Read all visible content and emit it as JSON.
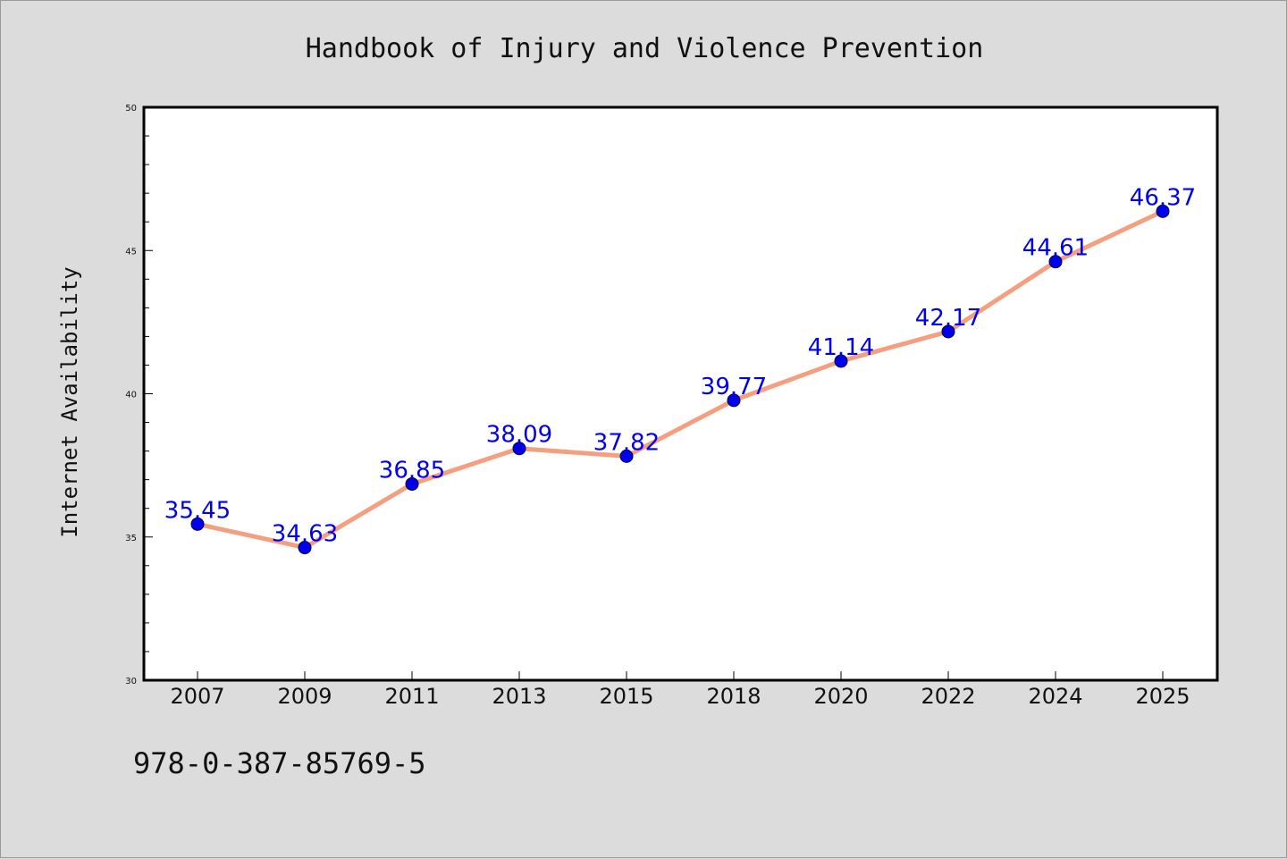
{
  "chart_data": {
    "type": "line",
    "title": "Handbook of Injury and Violence Prevention",
    "xlabel": "",
    "ylabel": "Internet Availability",
    "categories": [
      "2007",
      "2009",
      "2011",
      "2013",
      "2015",
      "2018",
      "2020",
      "2022",
      "2024",
      "2025"
    ],
    "values": [
      35.45,
      34.63,
      36.85,
      38.09,
      37.82,
      39.77,
      41.14,
      42.17,
      44.61,
      46.37
    ],
    "data_labels": [
      "35.45",
      "34.63",
      "36.85",
      "38.09",
      "37.82",
      "39.77",
      "41.14",
      "42.17",
      "44.61",
      "46.37"
    ],
    "ylim": [
      30,
      50
    ],
    "yticks": [
      "30",
      "35",
      "40",
      "45",
      "50"
    ],
    "grid": false,
    "line_color": "#f4a080",
    "marker_color": "#0000ee",
    "label_color": "#0000ee"
  },
  "footer": {
    "text": "978-0-387-85769-5"
  }
}
